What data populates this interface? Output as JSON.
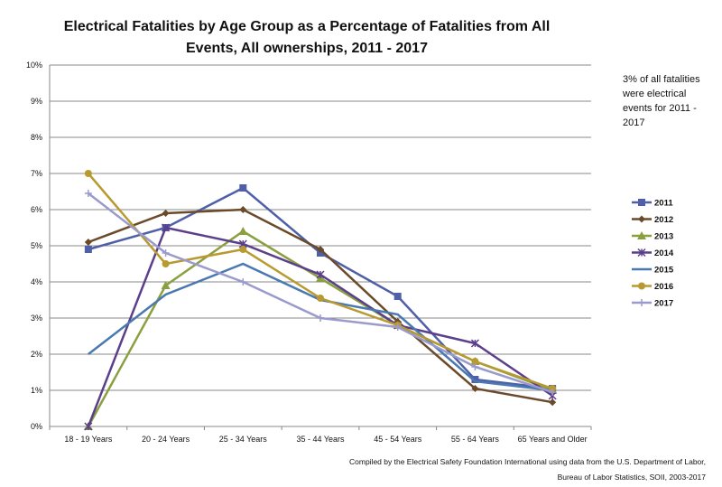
{
  "chart_data": {
    "type": "line",
    "title": "Electrical Fatalities by Age Group as a Percentage of Fatalities from All Events, All ownerships, 2011 - 2017",
    "annotation": "3% of all fatalities were electrical events for 2011 - 2017",
    "source": [
      "Compiled by the Electrical Safety Foundation International using data from the U.S. Department of Labor,",
      "Bureau of Labor Statistics, SOII, 2003-2017"
    ],
    "categories": [
      "18 - 19 Years",
      "20 - 24 Years",
      "25 - 34 Years",
      "35 - 44 Years",
      "45 - 54 Years",
      "55 - 64 Years",
      "65 Years and Older"
    ],
    "ylim": [
      0,
      10
    ],
    "yticks": [
      "0%",
      "1%",
      "2%",
      "3%",
      "4%",
      "5%",
      "6%",
      "7%",
      "8%",
      "9%",
      "10%"
    ],
    "grid": true,
    "legend_position": "right",
    "series": [
      {
        "name": "2011",
        "color": "#4f5fa8",
        "marker": "square",
        "values": [
          4.9,
          5.5,
          6.6,
          4.8,
          3.6,
          1.3,
          1.05
        ]
      },
      {
        "name": "2012",
        "color": "#6b4a2a",
        "marker": "diamond",
        "values": [
          5.1,
          5.9,
          6.0,
          4.9,
          2.9,
          1.05,
          0.67
        ]
      },
      {
        "name": "2013",
        "color": "#8aa040",
        "marker": "triangle",
        "values": [
          0,
          3.9,
          5.4,
          4.1,
          2.8,
          1.8,
          1.0
        ]
      },
      {
        "name": "2014",
        "color": "#5b3f8a",
        "marker": "star",
        "values": [
          0,
          5.5,
          5.05,
          4.2,
          2.8,
          2.3,
          0.85
        ]
      },
      {
        "name": "2015",
        "color": "#4a78b0",
        "marker": "none",
        "values": [
          2.0,
          3.65,
          4.5,
          3.5,
          3.1,
          1.25,
          1.0
        ]
      },
      {
        "name": "2016",
        "color": "#b89a30",
        "marker": "circle",
        "values": [
          7.0,
          4.5,
          4.9,
          3.55,
          2.8,
          1.8,
          1.05
        ]
      },
      {
        "name": "2017",
        "color": "#9a9acd",
        "marker": "plus",
        "values": [
          6.45,
          4.8,
          4.0,
          3.0,
          2.75,
          1.65,
          0.95
        ]
      }
    ]
  }
}
